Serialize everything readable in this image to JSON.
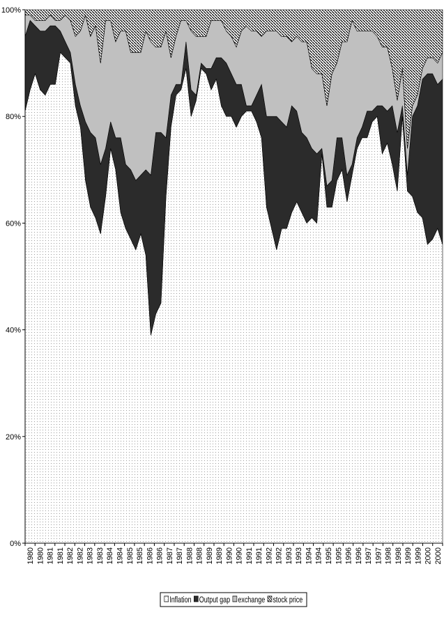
{
  "chart_data": {
    "type": "area",
    "stacked": true,
    "percent_stacked": true,
    "x": [
      1980.0,
      1980.25,
      1980.5,
      1980.75,
      1981.0,
      1981.25,
      1981.5,
      1981.75,
      1982.0,
      1982.25,
      1982.5,
      1982.75,
      1983.0,
      1983.25,
      1983.5,
      1983.75,
      1984.0,
      1984.25,
      1984.5,
      1984.75,
      1985.0,
      1985.25,
      1985.5,
      1985.75,
      1986.0,
      1986.25,
      1986.5,
      1986.75,
      1987.0,
      1987.25,
      1987.5,
      1987.75,
      1988.0,
      1988.25,
      1988.5,
      1988.75,
      1989.0,
      1989.25,
      1989.5,
      1989.75,
      1990.0,
      1990.25,
      1990.5,
      1990.75,
      1991.0,
      1991.25,
      1991.5,
      1991.75,
      1992.0,
      1992.25,
      1992.5,
      1992.75,
      1993.0,
      1993.25,
      1993.5,
      1993.75,
      1994.0,
      1994.25,
      1994.5,
      1994.75,
      1995.0,
      1995.25,
      1995.5,
      1995.75,
      1996.0,
      1996.25,
      1996.5,
      1996.75,
      1997.0,
      1997.25,
      1997.5,
      1997.75,
      1998.0,
      1998.25,
      1998.5,
      1998.75,
      1999.0,
      1999.25,
      1999.5,
      1999.75,
      2000.0,
      2000.25,
      2000.5,
      2000.75
    ],
    "x_tick_labels": [
      "1980",
      "1980",
      "1981",
      "1981",
      "1982",
      "1982",
      "1983",
      "1983",
      "1984",
      "1984",
      "1985",
      "1985",
      "1986",
      "1986",
      "1987",
      "1987",
      "1988",
      "1988",
      "1989",
      "1989",
      "1990",
      "1990",
      "1991",
      "1991",
      "1992",
      "1992",
      "1993",
      "1993",
      "1994",
      "1994",
      "1995",
      "1995",
      "1996",
      "1996",
      "1997",
      "1997",
      "1998",
      "1998",
      "1999",
      "1999",
      "2000",
      "2000"
    ],
    "y_tick_labels": [
      "0%",
      "20%",
      "40%",
      "60%",
      "80%",
      "100%"
    ],
    "ylim": [
      0,
      100
    ],
    "grid": false,
    "legend_position": "bottom",
    "series": [
      {
        "name": "Inflation",
        "fill": "dotted-white",
        "values": [
          81,
          85,
          88,
          85,
          84,
          86,
          86,
          92,
          91,
          90,
          82,
          78,
          68,
          63,
          61,
          58,
          65,
          74,
          70,
          62,
          59,
          57,
          55,
          58,
          54,
          39,
          43,
          45,
          65,
          78,
          84,
          85,
          89,
          80,
          83,
          89,
          88,
          85,
          87,
          82,
          80,
          80,
          78,
          80,
          81,
          81,
          79,
          76,
          63,
          59,
          55,
          59,
          59,
          62,
          64,
          62,
          60,
          61,
          60,
          73,
          63,
          63,
          68,
          70,
          64,
          69,
          74,
          76,
          76,
          79,
          80,
          73,
          75,
          71,
          66,
          80,
          66,
          65,
          62,
          61,
          56,
          57,
          59,
          56
        ]
      },
      {
        "name": "Output gap",
        "fill": "#2b2b2b",
        "values": [
          14,
          13,
          9,
          11,
          12,
          11,
          11,
          4,
          3,
          2,
          4,
          4,
          11,
          14,
          15,
          13,
          9,
          5,
          6,
          14,
          12,
          13,
          13,
          11,
          16,
          30,
          34,
          32,
          11,
          6,
          2,
          1,
          5,
          5,
          1,
          1,
          1,
          4,
          4,
          9,
          10,
          8,
          8,
          6,
          1,
          1,
          5,
          10,
          17,
          21,
          25,
          20,
          19,
          20,
          17,
          15,
          16,
          13,
          13,
          1,
          4,
          5,
          8,
          6,
          5,
          2,
          2,
          2,
          5,
          2,
          2,
          9,
          6,
          11,
          11,
          2,
          3,
          15,
          20,
          26,
          32,
          31,
          27,
          31
        ]
      },
      {
        "name": "exchange",
        "fill": "#c0c0c0",
        "values": [
          4,
          1,
          1,
          2,
          2,
          2,
          1,
          2,
          5,
          6,
          9,
          14,
          20,
          18,
          21,
          19,
          24,
          19,
          18,
          20,
          25,
          22,
          24,
          23,
          26,
          25,
          16,
          16,
          20,
          7,
          9,
          12,
          4,
          11,
          11,
          5,
          6,
          9,
          7,
          7,
          6,
          7,
          7,
          10,
          15,
          14,
          12,
          9,
          16,
          16,
          16,
          16,
          17,
          12,
          14,
          17,
          18,
          15,
          15,
          14,
          15,
          20,
          14,
          18,
          25,
          27,
          20,
          18,
          15,
          15,
          13,
          11,
          12,
          7,
          6,
          7,
          5,
          2,
          2,
          2,
          3,
          3,
          4,
          5
        ]
      },
      {
        "name": "stock price",
        "fill": "hatched",
        "values": [
          1,
          1,
          2,
          2,
          2,
          1,
          2,
          2,
          1,
          2,
          5,
          4,
          1,
          5,
          3,
          10,
          2,
          2,
          6,
          4,
          4,
          8,
          8,
          8,
          4,
          6,
          7,
          7,
          4,
          9,
          5,
          2,
          2,
          4,
          5,
          5,
          5,
          2,
          2,
          2,
          4,
          5,
          7,
          4,
          3,
          4,
          4,
          5,
          4,
          4,
          4,
          5,
          5,
          6,
          5,
          6,
          6,
          11,
          12,
          12,
          18,
          12,
          10,
          6,
          6,
          2,
          4,
          4,
          4,
          4,
          5,
          7,
          7,
          11,
          17,
          11,
          26,
          18,
          16,
          11,
          9,
          9,
          10,
          8
        ]
      }
    ]
  }
}
